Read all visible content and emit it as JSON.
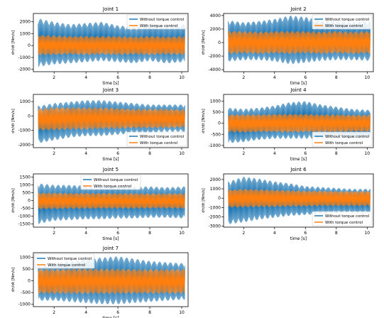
{
  "colors": {
    "without": "#1f77b4",
    "with": "#ff7f0e",
    "axis": "#000000"
  },
  "chart_data": [
    {
      "type": "line",
      "title": "Joint 1",
      "xlabel": "time [s]",
      "ylabel": "dτ/dt [Nm/s]",
      "xlim": [
        0.7,
        10.4
      ],
      "xticks": [
        2,
        4,
        6,
        8,
        10
      ],
      "ylim": [
        -2200,
        2700
      ],
      "yticks": [
        -2000,
        -1000,
        0,
        1000,
        2000
      ],
      "legend": "top-right",
      "series": [
        {
          "name": "Without torque control",
          "x": [
            1,
            2,
            3,
            4,
            5,
            6,
            7,
            8,
            9,
            10.2
          ],
          "y_max": [
            2300,
            2000,
            1800,
            1900,
            2000,
            1700,
            1600,
            1800,
            1700,
            1800
          ],
          "y_min": [
            -1800,
            -1600,
            -1500,
            -1400,
            -1300,
            -1400,
            -1500,
            -1300,
            -1500,
            -1400
          ]
        },
        {
          "name": "With torque control",
          "x": [
            1,
            2,
            3,
            4,
            5,
            6,
            7,
            8,
            9,
            10.2
          ],
          "y_max": [
            900,
            850,
            800,
            800,
            800,
            800,
            750,
            800,
            750,
            800
          ],
          "y_min": [
            -800,
            -800,
            -750,
            -800,
            -750,
            -800,
            -750,
            -800,
            -750,
            -800
          ]
        }
      ]
    },
    {
      "type": "line",
      "title": "Joint 2",
      "xlabel": "time [s]",
      "ylabel": "dτ/dt [Nm/s]",
      "xlim": [
        0.7,
        10.4
      ],
      "xticks": [
        2,
        4,
        6,
        8,
        10
      ],
      "ylim": [
        -4300,
        4300
      ],
      "yticks": [
        -4000,
        -2000,
        0,
        2000,
        4000
      ],
      "legend": "top-right",
      "series": [
        {
          "name": "Without torque control",
          "x": [
            1,
            2,
            3,
            4,
            5,
            6,
            7,
            8,
            9,
            10.2
          ],
          "y_max": [
            3300,
            3000,
            3200,
            3500,
            4000,
            3800,
            3300,
            3200,
            3000,
            3200
          ],
          "y_min": [
            -2800,
            -2600,
            -2600,
            -2800,
            -3200,
            -3000,
            -2700,
            -2600,
            -2600,
            -2700
          ]
        },
        {
          "name": "With torque control",
          "x": [
            1,
            2,
            3,
            4,
            5,
            6,
            7,
            8,
            9,
            10.2
          ],
          "y_max": [
            1700,
            1700,
            1600,
            1700,
            1700,
            1700,
            1600,
            1700,
            1600,
            1700
          ],
          "y_min": [
            -1700,
            -1600,
            -1700,
            -1600,
            -1700,
            -1600,
            -1700,
            -1600,
            -1700,
            -1600
          ]
        }
      ]
    },
    {
      "type": "line",
      "title": "Joint 3",
      "xlabel": "time [s]",
      "ylabel": "dτ/dt [Nm/s]",
      "xlim": [
        0.7,
        10.4
      ],
      "xticks": [
        2,
        4,
        6,
        8,
        10
      ],
      "ylim": [
        -2200,
        1500
      ],
      "yticks": [
        -2000,
        -1000,
        0,
        1000
      ],
      "legend": "bottom-right",
      "series": [
        {
          "name": "Without torque control",
          "x": [
            1,
            2,
            3,
            4,
            5,
            6,
            7,
            8,
            9,
            10.2
          ],
          "y_max": [
            700,
            900,
            1000,
            1100,
            1100,
            1000,
            900,
            800,
            800,
            800
          ],
          "y_min": [
            -1900,
            -1700,
            -1500,
            -1400,
            -1400,
            -1300,
            -1200,
            -1200,
            -1100,
            -1100
          ]
        },
        {
          "name": "With torque control",
          "x": [
            1,
            2,
            3,
            4,
            5,
            6,
            7,
            8,
            9,
            10.2
          ],
          "y_max": [
            500,
            600,
            600,
            600,
            600,
            550,
            500,
            500,
            500,
            450
          ],
          "y_min": [
            -1000,
            -1000,
            -950,
            -950,
            -900,
            -900,
            -850,
            -850,
            -850,
            -800
          ]
        }
      ]
    },
    {
      "type": "line",
      "title": "Joint 4",
      "xlabel": "time [s]",
      "ylabel": "dτ/dt [Nm/s]",
      "xlim": [
        0.7,
        10.4
      ],
      "xticks": [
        2,
        4,
        6,
        8,
        10
      ],
      "ylim": [
        -1100,
        1300
      ],
      "yticks": [
        -1000,
        -500,
        0,
        500,
        1000
      ],
      "legend": "bottom-right",
      "series": [
        {
          "name": "Without torque control",
          "x": [
            1,
            2,
            3,
            4,
            5,
            6,
            7,
            8,
            9,
            10.2
          ],
          "y_max": [
            700,
            650,
            700,
            800,
            950,
            1000,
            850,
            750,
            650,
            600
          ],
          "y_min": [
            -900,
            -850,
            -750,
            -700,
            -700,
            -700,
            -700,
            -650,
            -700,
            -650
          ]
        },
        {
          "name": "With torque control",
          "x": [
            1,
            2,
            3,
            4,
            5,
            6,
            7,
            8,
            9,
            10.2
          ],
          "y_max": [
            400,
            400,
            400,
            420,
            420,
            420,
            400,
            400,
            380,
            380
          ],
          "y_min": [
            -400,
            -420,
            -400,
            -400,
            -420,
            -400,
            -400,
            -400,
            -380,
            -380
          ]
        }
      ]
    },
    {
      "type": "line",
      "title": "Joint 5",
      "xlabel": "time [s]",
      "ylabel": "dτ/dt [Nm/s]",
      "xlim": [
        0.7,
        10.4
      ],
      "xticks": [
        2,
        4,
        6,
        8,
        10
      ],
      "ylim": [
        -1700,
        1700
      ],
      "yticks": [
        -1500,
        -1000,
        -500,
        0,
        500,
        1000,
        1500
      ],
      "legend": "top-center",
      "series": [
        {
          "name": "Without torque control",
          "x": [
            1,
            2,
            3,
            4,
            5,
            6,
            7,
            8,
            9,
            10.2
          ],
          "y_max": [
            1100,
            1000,
            1000,
            950,
            1000,
            950,
            900,
            900,
            850,
            900
          ],
          "y_min": [
            -1500,
            -1300,
            -1250,
            -1200,
            -1200,
            -1150,
            -1150,
            -1100,
            -1100,
            -1150
          ]
        },
        {
          "name": "With torque control",
          "x": [
            1,
            2,
            3,
            4,
            5,
            6,
            7,
            8,
            9,
            10.2
          ],
          "y_max": [
            500,
            500,
            480,
            480,
            480,
            470,
            470,
            460,
            460,
            470
          ],
          "y_min": [
            -550,
            -550,
            -530,
            -530,
            -520,
            -520,
            -520,
            -510,
            -510,
            -520
          ]
        }
      ]
    },
    {
      "type": "line",
      "title": "Joint 6",
      "xlabel": "time [s]",
      "ylabel": "dτ/dt [Nm/s]",
      "xlim": [
        0.7,
        10.4
      ],
      "xticks": [
        2,
        4,
        6,
        8,
        10
      ],
      "ylim": [
        -3100,
        2600
      ],
      "yticks": [
        -3000,
        -2000,
        -1000,
        0,
        1000,
        2000
      ],
      "legend": "bottom-right",
      "series": [
        {
          "name": "Without torque control",
          "x": [
            1,
            2,
            3,
            4,
            5,
            6,
            7,
            8,
            9,
            10.2
          ],
          "y_max": [
            1800,
            2300,
            2100,
            1800,
            1600,
            1300,
            1200,
            1100,
            1000,
            1000
          ],
          "y_min": [
            -2800,
            -2600,
            -2300,
            -2100,
            -1900,
            -1800,
            -1700,
            -1600,
            -1600,
            -1600
          ]
        },
        {
          "name": "With torque control",
          "x": [
            1,
            2,
            3,
            4,
            5,
            6,
            7,
            8,
            9,
            10.2
          ],
          "y_max": [
            900,
            1000,
            950,
            900,
            850,
            800,
            800,
            750,
            750,
            750
          ],
          "y_min": [
            -1000,
            -1000,
            -950,
            -950,
            -900,
            -900,
            -850,
            -850,
            -850,
            -850
          ]
        }
      ]
    },
    {
      "type": "line",
      "title": "Joint 7",
      "xlabel": "time [s]",
      "ylabel": "dτ/dt [Nm/s]",
      "xlim": [
        0.7,
        10.4
      ],
      "xticks": [
        2,
        4,
        6,
        8,
        10
      ],
      "ylim": [
        -1100,
        1200
      ],
      "yticks": [
        -1000,
        -500,
        0,
        500,
        1000
      ],
      "legend": "top-left",
      "series": [
        {
          "name": "Without torque control",
          "x": [
            1,
            2,
            3,
            4,
            5,
            6,
            7,
            8,
            9,
            10.2
          ],
          "y_max": [
            700,
            750,
            850,
            950,
            1000,
            1050,
            950,
            850,
            800,
            750
          ],
          "y_min": [
            -850,
            -850,
            -900,
            -950,
            -1000,
            -1000,
            -950,
            -900,
            -850,
            -800
          ]
        },
        {
          "name": "With torque control",
          "x": [
            1,
            2,
            3,
            4,
            5,
            6,
            7,
            8,
            9,
            10.2
          ],
          "y_max": [
            500,
            500,
            520,
            520,
            520,
            520,
            500,
            500,
            500,
            500
          ],
          "y_min": [
            -550,
            -550,
            -560,
            -560,
            -560,
            -560,
            -550,
            -550,
            -550,
            -550
          ]
        }
      ]
    }
  ]
}
